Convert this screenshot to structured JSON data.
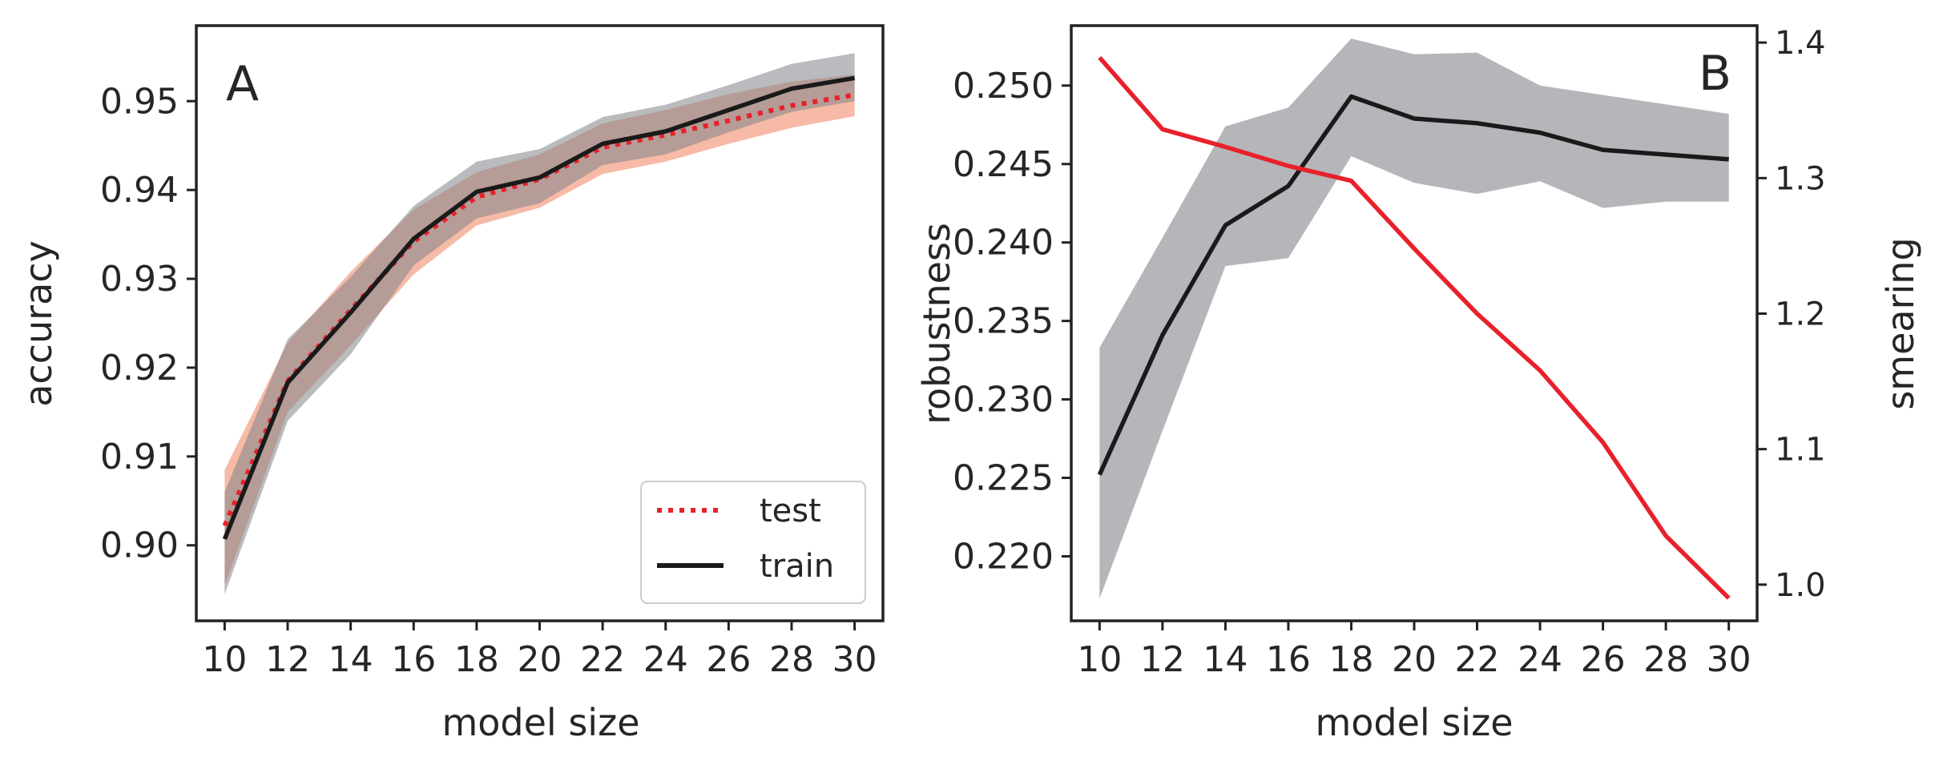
{
  "chart_data": [
    {
      "panel": "A",
      "type": "line",
      "title": "",
      "xlabel": "model size",
      "ylabel": "accuracy",
      "x": [
        10,
        12,
        14,
        16,
        18,
        20,
        22,
        24,
        26,
        28,
        30
      ],
      "xticks": [
        "10",
        "12",
        "14",
        "16",
        "18",
        "20",
        "22",
        "24",
        "26",
        "28",
        "30"
      ],
      "xlim": [
        9.1,
        30.9
      ],
      "ylim": [
        0.8915,
        0.9585
      ],
      "yticks": [
        0.9,
        0.91,
        0.92,
        0.93,
        0.94,
        0.95
      ],
      "ytick_labels": [
        "0.90",
        "0.91",
        "0.92",
        "0.93",
        "0.94",
        "0.95"
      ],
      "legend_position": "lower-right",
      "series": [
        {
          "name": "test",
          "style": "dotted",
          "color": "#e8212b",
          "band_color": "#f08c6a",
          "values": [
            0.9022,
            0.9185,
            0.9265,
            0.9342,
            0.9392,
            0.9412,
            0.9448,
            0.9462,
            0.9478,
            0.9495,
            0.9507
          ],
          "lower": [
            0.8955,
            0.915,
            0.9225,
            0.9305,
            0.936,
            0.938,
            0.9418,
            0.9432,
            0.9452,
            0.947,
            0.9483
          ],
          "upper": [
            0.9085,
            0.9228,
            0.9308,
            0.9378,
            0.942,
            0.944,
            0.9475,
            0.949,
            0.9508,
            0.9522,
            0.953
          ]
        },
        {
          "name": "train",
          "style": "solid",
          "color": "#1a1a1a",
          "band_color": "#808488",
          "values": [
            0.9007,
            0.9183,
            0.9262,
            0.9345,
            0.9398,
            0.9414,
            0.9452,
            0.9466,
            0.949,
            0.9514,
            0.9526
          ],
          "lower": [
            0.8945,
            0.914,
            0.9215,
            0.9315,
            0.9368,
            0.9385,
            0.9428,
            0.944,
            0.9465,
            0.9488,
            0.95
          ],
          "upper": [
            0.906,
            0.9232,
            0.9302,
            0.9382,
            0.9432,
            0.9446,
            0.9482,
            0.9496,
            0.9518,
            0.9542,
            0.9554
          ]
        }
      ]
    },
    {
      "panel": "B",
      "type": "line",
      "title": "",
      "xlabel": "model size",
      "ylabel": "robustness",
      "ylabel_right": "smearing",
      "x": [
        10,
        12,
        14,
        16,
        18,
        20,
        22,
        24,
        26,
        28,
        30
      ],
      "xticks": [
        "10",
        "12",
        "14",
        "16",
        "18",
        "20",
        "22",
        "24",
        "26",
        "28",
        "30"
      ],
      "xlim": [
        9.1,
        30.9
      ],
      "ylim": [
        0.21589,
        0.25382
      ],
      "yticks": [
        0.22,
        0.225,
        0.23,
        0.235,
        0.24,
        0.245,
        0.25
      ],
      "ytick_labels": [
        "0.220",
        "0.225",
        "0.230",
        "0.235",
        "0.240",
        "0.245",
        "0.250"
      ],
      "ylim_right": [
        0.9733,
        1.4125
      ],
      "yticks_right": [
        1.0,
        1.1,
        1.2,
        1.3,
        1.4
      ],
      "ytick_labels_right": [
        "1.0",
        "1.1",
        "1.2",
        "1.3",
        "1.4"
      ],
      "series": [
        {
          "name": "robustness",
          "axis": "left",
          "style": "solid",
          "color": "#1a1a1a",
          "band_color": "#b0b2b6",
          "values": [
            0.2252,
            0.2341,
            0.2411,
            0.2436,
            0.2493,
            0.2479,
            0.2476,
            0.247,
            0.2459,
            0.2456,
            0.2453
          ],
          "lower": [
            0.2173,
            0.228,
            0.2385,
            0.239,
            0.2455,
            0.2438,
            0.2431,
            0.2439,
            0.2422,
            0.2426,
            0.2426
          ],
          "upper": [
            0.2333,
            0.2403,
            0.2474,
            0.2486,
            0.253,
            0.252,
            0.2521,
            0.25,
            0.2494,
            0.2488,
            0.2482
          ]
        },
        {
          "name": "smearing",
          "axis": "right",
          "style": "solid",
          "color": "#e8212b",
          "values": [
            1.389,
            1.336,
            1.323,
            1.309,
            1.298,
            1.248,
            1.2,
            1.158,
            1.105,
            1.036,
            0.99
          ]
        }
      ]
    }
  ]
}
